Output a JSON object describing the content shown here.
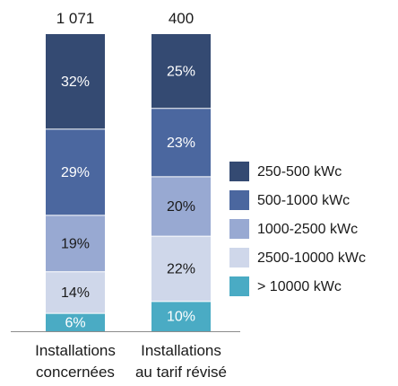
{
  "chart_data": {
    "type": "bar",
    "stacked": true,
    "normalized": true,
    "title": "",
    "xlabel": "",
    "ylabel": "",
    "ylim": [
      0,
      100
    ],
    "grid": false,
    "legend_position": "right",
    "categories": [
      {
        "lines": [
          "Installations",
          "concernées"
        ],
        "total": "1 071"
      },
      {
        "lines": [
          "Installations",
          "au tarif révisé"
        ],
        "total": "400"
      }
    ],
    "series": [
      {
        "name": "250-500 kWc",
        "color": "#344a72",
        "label_color": "#ffffff",
        "values": [
          32,
          25
        ],
        "labels": [
          "32%",
          "25%"
        ]
      },
      {
        "name": "500-1000 kWc",
        "color": "#4b679f",
        "label_color": "#ffffff",
        "values": [
          29,
          23
        ],
        "labels": [
          "29%",
          "23%"
        ]
      },
      {
        "name": "1000-2500 kWc",
        "color": "#98a9d2",
        "label_color": "#1a1a1a",
        "values": [
          19,
          20
        ],
        "labels": [
          "19%",
          "20%"
        ]
      },
      {
        "name": "2500-10000 kWc",
        "color": "#cfd7ea",
        "label_color": "#1a1a1a",
        "values": [
          14,
          22
        ],
        "labels": [
          "14%",
          "22%"
        ]
      },
      {
        "name": "> 10000 kWc",
        "color": "#4aabc4",
        "label_color": "#ffffff",
        "values": [
          6,
          10
        ],
        "labels": [
          "6%",
          "10%"
        ]
      }
    ]
  }
}
